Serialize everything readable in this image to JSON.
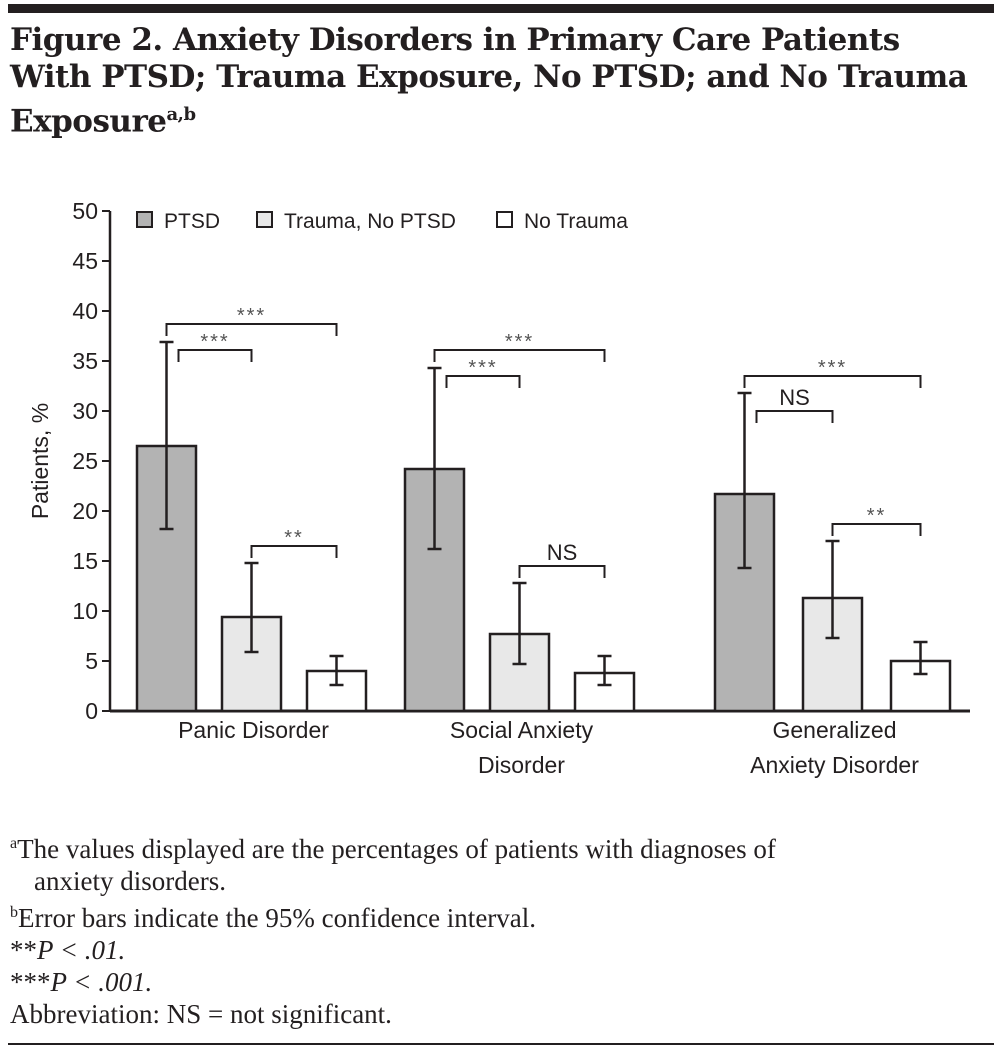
{
  "title": "Figure 2. Anxiety Disorders in Primary Care Patients With PTSD; Trauma Exposure, No PTSD; and No Trauma Exposure",
  "title_superscript": "a,b",
  "chart_data": {
    "type": "bar",
    "title": "Figure 2. Anxiety Disorders in Primary Care Patients With PTSD; Trauma Exposure, No PTSD; and No Trauma Exposure",
    "xlabel": "",
    "ylabel": "Patients, %",
    "ylim": [
      0,
      50
    ],
    "yticks": [
      0,
      5,
      10,
      15,
      20,
      25,
      30,
      35,
      40,
      45,
      50
    ],
    "categories": [
      [
        "Panic Disorder"
      ],
      [
        "Social Anxiety",
        "Disorder"
      ],
      [
        "Generalized",
        "Anxiety Disorder"
      ]
    ],
    "legend_position": "top",
    "series": [
      {
        "name": "PTSD",
        "color": "#b3b3b3",
        "values": [
          26.5,
          24.2,
          21.7
        ],
        "ci_low": [
          18.2,
          16.2,
          14.3
        ],
        "ci_high": [
          36.9,
          34.3,
          31.8
        ]
      },
      {
        "name": "Trauma, No PTSD",
        "color": "#e8e8e8",
        "values": [
          9.4,
          7.7,
          11.3
        ],
        "ci_low": [
          5.9,
          4.7,
          7.3
        ],
        "ci_high": [
          14.8,
          12.8,
          17.0
        ]
      },
      {
        "name": "No Trauma",
        "color": "#ffffff",
        "values": [
          4.0,
          3.8,
          5.0
        ],
        "ci_low": [
          2.6,
          2.6,
          3.7
        ],
        "ci_high": [
          5.5,
          5.5,
          6.9
        ]
      }
    ],
    "comparisons": [
      [
        {
          "pair": [
            "PTSD",
            "No Trauma"
          ],
          "label": "***"
        },
        {
          "pair": [
            "PTSD",
            "Trauma, No PTSD"
          ],
          "label": "***"
        },
        {
          "pair": [
            "Trauma, No PTSD",
            "No Trauma"
          ],
          "label": "**"
        }
      ],
      [
        {
          "pair": [
            "PTSD",
            "No Trauma"
          ],
          "label": "***"
        },
        {
          "pair": [
            "PTSD",
            "Trauma, No PTSD"
          ],
          "label": "***"
        },
        {
          "pair": [
            "Trauma, No PTSD",
            "No Trauma"
          ],
          "label": "NS"
        }
      ],
      [
        {
          "pair": [
            "PTSD",
            "No Trauma"
          ],
          "label": "***"
        },
        {
          "pair": [
            "PTSD",
            "Trauma, No PTSD"
          ],
          "label": "NS"
        },
        {
          "pair": [
            "Trauma, No PTSD",
            "No Trauma"
          ],
          "label": "**"
        }
      ]
    ]
  },
  "footnotes": {
    "a_mark": "a",
    "a_text": "The values displayed are the percentages of patients with diagnoses of",
    "a_text2": "anxiety disorders.",
    "b_mark": "b",
    "b_text": "Error bars indicate the 95% confidence interval.",
    "p01_stars": "**",
    "p01_text": "P < .01.",
    "p001_stars": "***",
    "p001_text": "P < .001.",
    "abbrev": "Abbreviation: NS = not significant."
  }
}
